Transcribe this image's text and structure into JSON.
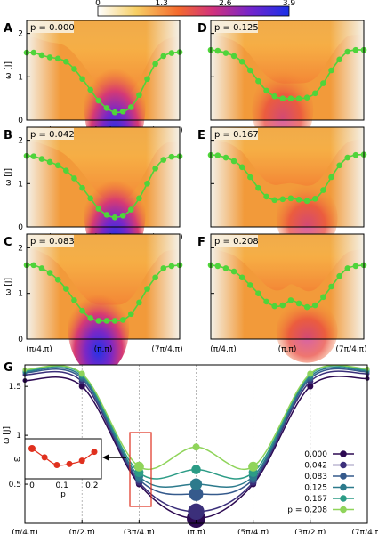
{
  "colorbar": {
    "ticks": [
      "0",
      "1.3",
      "2.6",
      "3.9"
    ],
    "range": [
      0,
      3.9
    ]
  },
  "chart_data": [
    {
      "panel": "A",
      "type": "heatmap",
      "p_label": "p = 0.000",
      "p": 0.0,
      "ylabel": "ω [J]",
      "ylim": [
        0,
        2.3
      ],
      "y_ticks": [
        "0",
        "1",
        "2"
      ],
      "x_tick_labels": [
        "(π/4,π)",
        "(π,π)",
        "(7π/4,π)"
      ],
      "x": [
        0.785,
        1.0,
        1.25,
        1.5,
        1.75,
        2.0,
        2.25,
        2.5,
        2.75,
        3.0,
        3.25,
        3.5,
        3.75,
        4.0,
        4.25,
        4.5,
        4.75,
        5.0,
        5.25,
        5.5
      ],
      "y": [
        1.56,
        1.56,
        1.5,
        1.45,
        1.42,
        1.35,
        1.18,
        0.95,
        0.7,
        0.45,
        0.28,
        0.18,
        0.2,
        0.3,
        0.58,
        0.95,
        1.3,
        1.48,
        1.55,
        1.57
      ]
    },
    {
      "panel": "B",
      "type": "heatmap",
      "p_label": "p = 0.042",
      "p": 0.042,
      "ylabel": "ω [J]",
      "ylim": [
        0,
        2.3
      ],
      "y_ticks": [
        "0",
        "1",
        "2"
      ],
      "x_tick_labels": [
        "(π/4,π)",
        "(π,π)",
        "(7π/4,π)"
      ],
      "x": [
        0.785,
        1.0,
        1.25,
        1.5,
        1.75,
        2.0,
        2.25,
        2.5,
        2.75,
        3.0,
        3.25,
        3.5,
        3.75,
        4.0,
        4.25,
        4.5,
        4.75,
        5.0,
        5.25,
        5.5
      ],
      "y": [
        1.64,
        1.63,
        1.57,
        1.5,
        1.42,
        1.3,
        1.12,
        0.9,
        0.66,
        0.42,
        0.28,
        0.22,
        0.26,
        0.4,
        0.66,
        1.0,
        1.35,
        1.55,
        1.62,
        1.63
      ]
    },
    {
      "panel": "C",
      "type": "heatmap",
      "p_label": "p = 0.083",
      "p": 0.083,
      "ylabel": "ω [J]",
      "ylim": [
        0,
        2.3
      ],
      "y_ticks": [
        "0",
        "1",
        "2"
      ],
      "x_tick_labels": [
        "(π/4,π)",
        "(π,π)",
        "(7π/4,π)"
      ],
      "x": [
        0.785,
        1.0,
        1.25,
        1.5,
        1.75,
        2.0,
        2.25,
        2.5,
        2.75,
        3.0,
        3.25,
        3.5,
        3.75,
        4.0,
        4.25,
        4.5,
        4.75,
        5.0,
        5.25,
        5.5
      ],
      "y": [
        1.62,
        1.62,
        1.55,
        1.45,
        1.3,
        1.1,
        0.85,
        0.62,
        0.46,
        0.4,
        0.4,
        0.4,
        0.42,
        0.55,
        0.8,
        1.1,
        1.35,
        1.55,
        1.6,
        1.62
      ]
    },
    {
      "panel": "D",
      "type": "heatmap",
      "p_label": "p = 0.125",
      "p": 0.125,
      "ylim": [
        0,
        2.3
      ],
      "y_ticks": [],
      "x_tick_labels": [],
      "x": [
        0.785,
        1.0,
        1.25,
        1.5,
        1.75,
        2.0,
        2.25,
        2.5,
        2.75,
        3.0,
        3.25,
        3.5,
        3.75,
        4.0,
        4.25,
        4.5,
        4.75,
        5.0,
        5.25,
        5.5
      ],
      "y": [
        1.62,
        1.6,
        1.55,
        1.48,
        1.35,
        1.15,
        0.9,
        0.68,
        0.55,
        0.5,
        0.5,
        0.5,
        0.52,
        0.62,
        0.85,
        1.15,
        1.4,
        1.58,
        1.62,
        1.62
      ]
    },
    {
      "panel": "E",
      "type": "heatmap",
      "p_label": "p = 0.167",
      "p": 0.167,
      "ylim": [
        0,
        2.3
      ],
      "y_ticks": [],
      "x_tick_labels": [],
      "x": [
        0.785,
        1.0,
        1.25,
        1.5,
        1.75,
        2.0,
        2.25,
        2.5,
        2.75,
        3.0,
        3.25,
        3.5,
        3.75,
        4.0,
        4.25,
        4.5,
        4.75,
        5.0,
        5.25,
        5.5
      ],
      "y": [
        1.66,
        1.65,
        1.6,
        1.52,
        1.38,
        1.15,
        0.9,
        0.7,
        0.62,
        0.64,
        0.66,
        0.63,
        0.6,
        0.65,
        0.85,
        1.15,
        1.42,
        1.6,
        1.66,
        1.67
      ]
    },
    {
      "panel": "F",
      "type": "heatmap",
      "p_label": "p = 0.208",
      "p": 0.208,
      "ylim": [
        0,
        2.3
      ],
      "y_ticks": [],
      "x_tick_labels": [
        "(π/4,π)",
        "(π,π)",
        "(7π/4,π)"
      ],
      "x": [
        0.785,
        1.0,
        1.25,
        1.5,
        1.75,
        2.0,
        2.25,
        2.5,
        2.75,
        3.0,
        3.25,
        3.5,
        3.75,
        4.0,
        4.25,
        4.5,
        4.75,
        5.0,
        5.25,
        5.5
      ],
      "y": [
        1.62,
        1.6,
        1.55,
        1.48,
        1.35,
        1.18,
        1.0,
        0.82,
        0.72,
        0.74,
        0.85,
        0.78,
        0.7,
        0.74,
        0.92,
        1.15,
        1.38,
        1.55,
        1.6,
        1.62
      ]
    },
    {
      "panel": "G",
      "type": "line",
      "ylabel": "ω [J]",
      "ylim": [
        0,
        1.7
      ],
      "y_ticks": [
        "0.5",
        "1",
        "1.5"
      ],
      "x_tick_labels": [
        "(π/4,π)",
        "(π/2,π)",
        "(3π/4,π)",
        "(π,π)",
        "(5π/4,π)",
        "(3π/2,π)",
        "(7π/4,π)"
      ],
      "x": [
        0.785,
        1.571,
        2.356,
        3.142,
        3.927,
        4.712,
        5.498
      ],
      "series": [
        {
          "name": "0.000",
          "color": "#2d0a52",
          "values": [
            1.56,
            1.5,
            0.5,
            0.15,
            0.5,
            1.5,
            1.58
          ]
        },
        {
          "name": "0.042",
          "color": "#3b2f7a",
          "values": [
            1.62,
            1.55,
            0.52,
            0.22,
            0.52,
            1.55,
            1.63
          ]
        },
        {
          "name": "0.083",
          "color": "#355a8c",
          "values": [
            1.64,
            1.58,
            0.55,
            0.4,
            0.55,
            1.58,
            1.65
          ]
        },
        {
          "name": "0.125",
          "color": "#2c7a8c",
          "values": [
            1.65,
            1.6,
            0.58,
            0.5,
            0.58,
            1.6,
            1.66
          ]
        },
        {
          "name": "0.167",
          "color": "#2c9c86",
          "values": [
            1.66,
            1.62,
            0.62,
            0.65,
            0.62,
            1.62,
            1.67
          ]
        },
        {
          "name": "p = 0.208",
          "color": "#8fd45a",
          "values": [
            1.67,
            1.63,
            0.68,
            0.88,
            0.68,
            1.63,
            1.68
          ]
        }
      ],
      "inset": {
        "type": "scatter",
        "ylabel": "ω",
        "xlabel": "p",
        "x_ticks": [
          "0",
          "0.1",
          "0.2"
        ],
        "points": [
          [
            0.0,
            0.71
          ],
          [
            0.042,
            0.63
          ],
          [
            0.083,
            0.56
          ],
          [
            0.125,
            0.57
          ],
          [
            0.167,
            0.6
          ],
          [
            0.208,
            0.68
          ]
        ]
      }
    }
  ]
}
